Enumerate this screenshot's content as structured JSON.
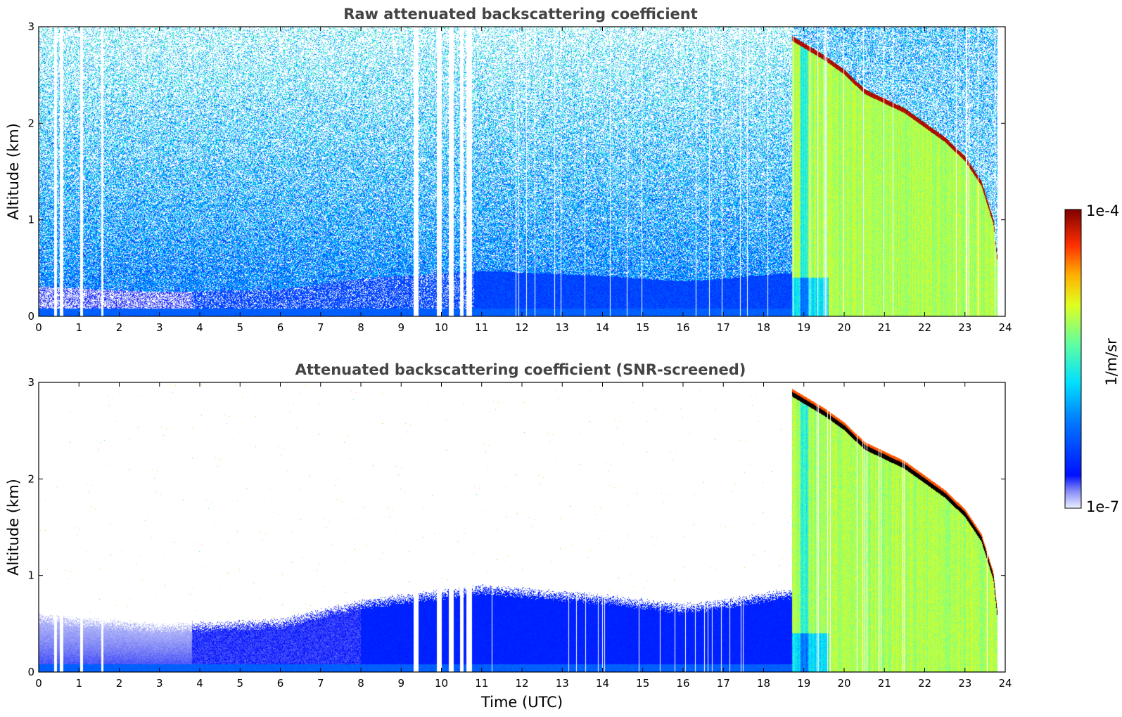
{
  "chart_data": [
    {
      "type": "heatmap",
      "title": "Raw attenuated backscattering coefficient",
      "xlabel": "",
      "ylabel": "Altitude (km)",
      "xlim": [
        0,
        24
      ],
      "ylim": [
        0,
        3
      ],
      "x_ticks": [
        "0",
        "1",
        "2",
        "3",
        "4",
        "5",
        "6",
        "7",
        "8",
        "9",
        "10",
        "11",
        "12",
        "13",
        "14",
        "15",
        "16",
        "17",
        "18",
        "19",
        "20",
        "21",
        "22",
        "23",
        "24"
      ],
      "y_ticks": [
        "0",
        "1",
        "2",
        "3"
      ],
      "screened": false
    },
    {
      "type": "heatmap",
      "title": "Attenuated backscattering coefficient (SNR-screened)",
      "xlabel": "Time (UTC)",
      "ylabel": "Altitude (km)",
      "xlim": [
        0,
        24
      ],
      "ylim": [
        0,
        3
      ],
      "x_ticks": [
        "0",
        "1",
        "2",
        "3",
        "4",
        "5",
        "6",
        "7",
        "8",
        "9",
        "10",
        "11",
        "12",
        "13",
        "14",
        "15",
        "16",
        "17",
        "18",
        "19",
        "20",
        "21",
        "22",
        "23",
        "24"
      ],
      "y_ticks": [
        "0",
        "1",
        "2",
        "3"
      ],
      "screened": true
    }
  ],
  "colorbar": {
    "label": "1/m/sr",
    "max_label": "1e-4",
    "min_label": "1e-7",
    "scale": "log",
    "range": [
      1e-07,
      0.0001
    ],
    "colormap": "jet"
  },
  "data_gaps_utc": [
    [
      0.38,
      0.45
    ],
    [
      0.52,
      0.6
    ],
    [
      1.02,
      1.1
    ],
    [
      1.55,
      1.6
    ],
    [
      9.3,
      9.43
    ],
    [
      9.88,
      10.0
    ],
    [
      10.18,
      10.3
    ],
    [
      10.45,
      10.55
    ],
    [
      10.62,
      10.75
    ]
  ],
  "cloud_layer": {
    "start_utc": 18.7,
    "end_utc": 23.8,
    "top_km": [
      [
        18.7,
        2.9
      ],
      [
        19.5,
        2.7
      ],
      [
        20,
        2.55
      ],
      [
        20.5,
        2.35
      ],
      [
        21,
        2.25
      ],
      [
        21.5,
        2.15
      ],
      [
        22,
        2.0
      ],
      [
        22.5,
        1.85
      ],
      [
        23,
        1.65
      ],
      [
        23.4,
        1.4
      ],
      [
        23.7,
        1.0
      ],
      [
        23.8,
        0.6
      ]
    ]
  },
  "boundary_layer_top_km": [
    [
      0,
      0.55
    ],
    [
      3,
      0.45
    ],
    [
      6,
      0.5
    ],
    [
      8,
      0.7
    ],
    [
      10,
      0.8
    ],
    [
      11,
      0.85
    ],
    [
      14,
      0.75
    ],
    [
      16,
      0.65
    ],
    [
      17,
      0.7
    ],
    [
      18.5,
      0.8
    ]
  ]
}
